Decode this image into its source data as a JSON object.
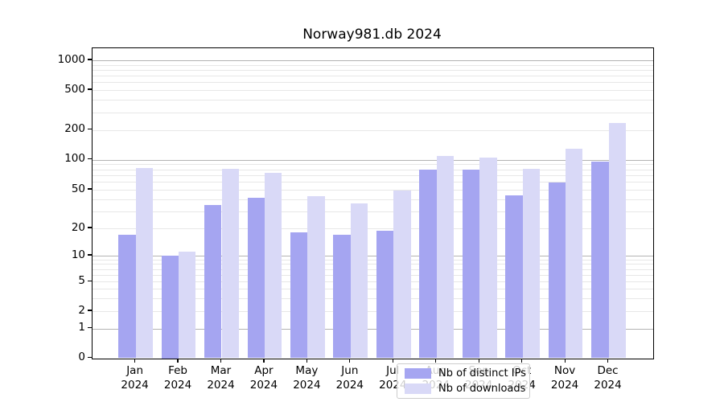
{
  "chart_data": {
    "type": "bar",
    "title": "Norway981.db 2024",
    "categories": [
      "Jan",
      "Feb",
      "Mar",
      "Apr",
      "May",
      "Jun",
      "Jul",
      "Aug",
      "Sep",
      "Oct",
      "Nov",
      "Dec"
    ],
    "year": "2024",
    "series": [
      {
        "name": "Nb of distinct IPs",
        "color": "#a5a5f1",
        "values": [
          17,
          10,
          35,
          41,
          18,
          17,
          19,
          79,
          80,
          44,
          59,
          95
        ]
      },
      {
        "name": "Nb of downloads",
        "color": "#d9d9f7",
        "values": [
          83,
          11,
          81,
          74,
          43,
          36,
          49,
          110,
          105,
          81,
          130,
          235
        ]
      }
    ],
    "yaxis": {
      "scale": "symlog",
      "tick_labels": [
        0,
        1,
        2,
        5,
        10,
        20,
        50,
        100,
        200,
        500,
        1000
      ],
      "range": [
        0,
        1300
      ]
    },
    "xlabel": "",
    "ylabel": "",
    "grid": true,
    "legend_position": "lower center"
  }
}
